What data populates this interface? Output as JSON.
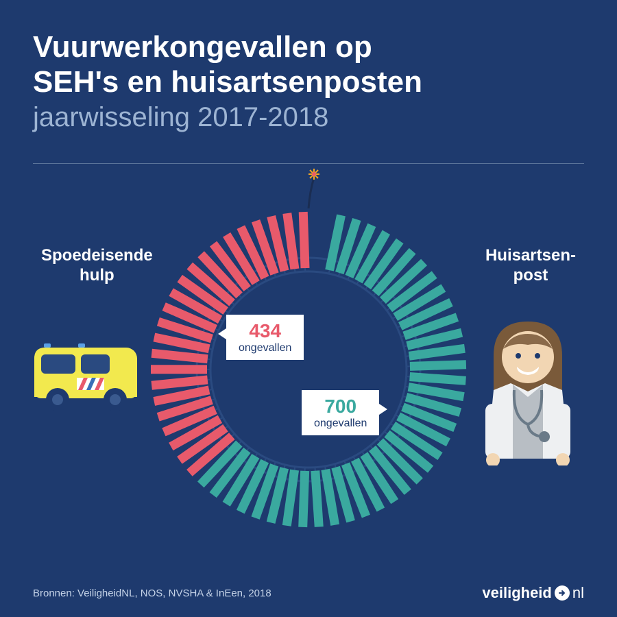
{
  "header": {
    "title_line1": "Vuurwerkongevallen op",
    "title_line2": "SEH's en huisartsenposten",
    "subtitle": "jaarwisseling 2017-2018"
  },
  "chart": {
    "type": "radial-segment-donut",
    "total_segments": 60,
    "segment_1_count": 23,
    "segment_2_count": 37,
    "colors": {
      "seg1": "#e85a6b",
      "seg2": "#3aa99f",
      "track": "#2a4a80",
      "rail": "#1e3a6e"
    },
    "outer_radius": 210,
    "inner_radius": 135,
    "tick_outer_r": 230,
    "tick_inner_r": 148,
    "start_angle_deg": -85,
    "gap_deg": 8
  },
  "labels": {
    "left_line1": "Spoedeisende",
    "left_line2": "hulp",
    "right_line1": "Huisartsen-",
    "right_line2": "post"
  },
  "values": {
    "v1_num": "434",
    "v1_sub": "ongevallen",
    "v1_color": "#e85a6b",
    "v2_num": "700",
    "v2_sub": "ongevallen",
    "v2_color": "#3aa99f"
  },
  "footer": {
    "sources": "Bronnen: VeiligheidNL, NOS, NVSHA & InEen, 2018",
    "logo_bold": "veiligheid",
    "logo_light": "nl"
  },
  "styling": {
    "background": "#1e3a6e",
    "title_color": "#ffffff",
    "subtitle_color": "#9db4d3",
    "title_fontsize": 44,
    "subtitle_fontsize": 40,
    "label_fontsize": 24,
    "value_num_fontsize": 28
  }
}
